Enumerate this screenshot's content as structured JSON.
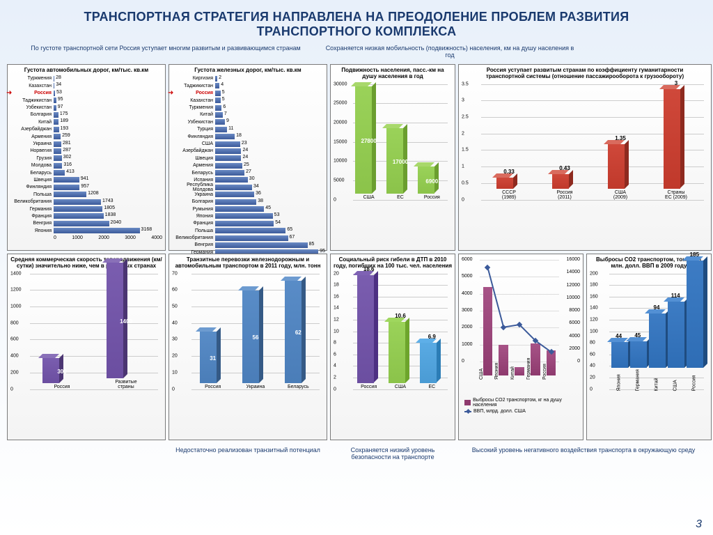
{
  "title": "ТРАНСПОРТНАЯ СТРАТЕГИЯ НАПРАВЛЕНА НА ПРЕОДОЛЕНИЕ ПРОБЛЕМ РАЗВИТИЯ ТРАНСПОРТНОГО КОМПЛЕКСА",
  "subtitle_left": "По густоте транспортной сети Россия уступает многим развитым и развивающимся странам",
  "subtitle_right": "Сохраняется низкая мобильность (подвижность) населения, км на душу населения в год",
  "page_number": "3",
  "panel1": {
    "title": "Густота автомобильных дорог, км/тыс. кв.км",
    "xmax": 4000,
    "xticks": [
      "0",
      "1000",
      "2000",
      "3000",
      "4000"
    ],
    "bar_color": "#3b5a9a",
    "bar_color_top": "#6a8ac4",
    "highlight_color": "#c00000",
    "data": [
      {
        "label": "Туркмения",
        "value": 28
      },
      {
        "label": "Казахстан",
        "value": 34
      },
      {
        "label": "Россия",
        "value": 53,
        "hl": true
      },
      {
        "label": "Таджикистан",
        "value": 95
      },
      {
        "label": "Узбекистан",
        "value": 97
      },
      {
        "label": "Болгария",
        "value": 175
      },
      {
        "label": "Китай",
        "value": 189
      },
      {
        "label": "Азербайджан",
        "value": 193
      },
      {
        "label": "Армения",
        "value": 259
      },
      {
        "label": "Украина",
        "value": 281
      },
      {
        "label": "Норвегия",
        "value": 287
      },
      {
        "label": "Грузия",
        "value": 302
      },
      {
        "label": "Молдова",
        "value": 316
      },
      {
        "label": "Беларусь",
        "value": 413
      },
      {
        "label": "Швеция",
        "value": 941
      },
      {
        "label": "Финляндия",
        "value": 957
      },
      {
        "label": "Польша",
        "value": 1208
      },
      {
        "label": "Великобритания",
        "value": 1743
      },
      {
        "label": "Германия",
        "value": 1805
      },
      {
        "label": "Франция",
        "value": 1838
      },
      {
        "label": "Венгрия",
        "value": 2040
      },
      {
        "label": "Япония",
        "value": 3168
      }
    ]
  },
  "panel2": {
    "title": "Густота железных дорог, км/тыс. кв.км",
    "xmax": 100,
    "xticks": [
      "0",
      "10",
      "20",
      "30",
      "40",
      "50",
      "60",
      "70",
      "80",
      "90",
      "100"
    ],
    "bar_color": "#3b5a9a",
    "bar_color_top": "#6a8ac4",
    "highlight_color": "#c00000",
    "data": [
      {
        "label": "Киргизия",
        "value": 2
      },
      {
        "label": "Таджикистан",
        "value": 4
      },
      {
        "label": "Россия",
        "value": 5,
        "hl": true
      },
      {
        "label": "Казахстан",
        "value": 5
      },
      {
        "label": "Туркмения",
        "value": 6
      },
      {
        "label": "Китай",
        "value": 7
      },
      {
        "label": "Узбекистан",
        "value": 9
      },
      {
        "label": "Турция",
        "value": 11
      },
      {
        "label": "Финляндия",
        "value": 18
      },
      {
        "label": "США",
        "value": 23
      },
      {
        "label": "Азербайджан",
        "value": 24
      },
      {
        "label": "Швеция",
        "value": 24
      },
      {
        "label": "Армения",
        "value": 25
      },
      {
        "label": "Беларусь",
        "value": 27
      },
      {
        "label": "Испания",
        "value": 30
      },
      {
        "label": "Республика Молдова",
        "value": 34
      },
      {
        "label": "Украина",
        "value": 36
      },
      {
        "label": "Болгария",
        "value": 38
      },
      {
        "label": "Румыния",
        "value": 45
      },
      {
        "label": "Япония",
        "value": 53
      },
      {
        "label": "Франция",
        "value": 54
      },
      {
        "label": "Польша",
        "value": 65
      },
      {
        "label": "Великобритания",
        "value": 67
      },
      {
        "label": "Венгрия",
        "value": 85
      },
      {
        "label": "Германия",
        "value": 95
      }
    ]
  },
  "panel3": {
    "title": "Подвижность населения, пасс.-км на душу населения в год",
    "ymax": 30000,
    "yticks": [
      "0",
      "5000",
      "10000",
      "15000",
      "20000",
      "25000",
      "30000"
    ],
    "front": "#8bc34a",
    "side": "#6b9e2f",
    "top": "#a8d86b",
    "data": [
      {
        "label": "США",
        "value": 27800
      },
      {
        "label": "ЕС",
        "value": 17000
      },
      {
        "label": "Россия",
        "value": 6900
      }
    ]
  },
  "panel4": {
    "title": "Россия уступает развитым странам  по коэффициенту гуманитарности транспортной системы  (отношение пассажирооборота к грузообороту)",
    "ymax": 3.5,
    "yticks": [
      "0",
      "0.5",
      "1",
      "1.5",
      "2",
      "2.5",
      "3",
      "3.5"
    ],
    "front": "#c0392b",
    "side": "#8e2a1f",
    "top": "#d96b5e",
    "data": [
      {
        "label": "СССР (1989)",
        "value": 0.33
      },
      {
        "label": "Россия (2011)",
        "value": 0.43
      },
      {
        "label": "США (2009)",
        "value": 1.35
      },
      {
        "label": "Страны ЕС (2009)",
        "value": 3
      }
    ]
  },
  "panel5": {
    "title": "Средняя коммерческая скорость товародвижения (км/сутки) значительно ниже, чем в развитых странах",
    "ymax": 1400,
    "yticks": [
      "0",
      "200",
      "400",
      "600",
      "800",
      "1000",
      "1200",
      "1400"
    ],
    "front": "#6b4ea0",
    "side": "#4b3572",
    "top": "#8970b8",
    "data": [
      {
        "label": "Россия",
        "value": 300
      },
      {
        "label": "Развитые страны",
        "value": 1400
      }
    ]
  },
  "panel6": {
    "title": "Транзитные перевозки железнодорожным и автомобильным транспортом в 2011 году, млн. тонн",
    "ymax": 70,
    "yticks": [
      "0",
      "10",
      "20",
      "30",
      "40",
      "50",
      "60",
      "70"
    ],
    "front": "#4a7db8",
    "side": "#355a86",
    "top": "#6d9bd0",
    "data": [
      {
        "label": "Россия",
        "value": 31
      },
      {
        "label": "Украина",
        "value": 56
      },
      {
        "label": "Беларусь",
        "value": 62
      }
    ],
    "caption": "Недостаточно реализован транзитный потенциал"
  },
  "panel7": {
    "title": "Социальный риск гибели в ДТП в 2010 году, погибших на 100 тыс. чел. населения",
    "ymax": 20,
    "yticks": [
      "0",
      "2",
      "4",
      "6",
      "8",
      "10",
      "12",
      "14",
      "16",
      "18",
      "20"
    ],
    "colors": [
      "#6b4ea0",
      "#8bc34a",
      "#4a9bd4"
    ],
    "data": [
      {
        "label": "Россия",
        "value": 18.6
      },
      {
        "label": "США",
        "value": 10.6
      },
      {
        "label": "ЕС",
        "value": 6.9
      }
    ],
    "caption": "Сохраняется низкий уровень безопасности на транспорте"
  },
  "panel8": {
    "title": "",
    "y1max": 6000,
    "y1ticks": [
      "0",
      "1000",
      "2000",
      "3000",
      "4000",
      "5000",
      "6000"
    ],
    "y2max": 16000,
    "y2ticks": [
      "0",
      "2000",
      "4000",
      "6000",
      "8000",
      "10000",
      "12000",
      "14000",
      "16000"
    ],
    "bar_color": "#8e3a6e",
    "line_color": "#3b5a9a",
    "legend": [
      "Выбросы CO2 транспортом, кг на душу населения",
      "ВВП, млрд. долл. США"
    ],
    "data": [
      {
        "label": "США",
        "bar": 5200,
        "line": 14800
      },
      {
        "label": "Япония",
        "bar": 1800,
        "line": 5400
      },
      {
        "label": "Китай",
        "bar": 500,
        "line": 5800
      },
      {
        "label": "Германия",
        "bar": 1900,
        "line": 3300
      },
      {
        "label": "Россия",
        "bar": 1500,
        "line": 1500
      }
    ],
    "caption": "Высокий уровень негативного воздействия транспорта в окружающую среду"
  },
  "panel9": {
    "title": "Выбросы CO2 транспортом, тонн на 1 млн. долл. ВВП в 2009 году",
    "ymax": 200,
    "yticks": [
      "0",
      "20",
      "40",
      "60",
      "80",
      "100",
      "120",
      "140",
      "160",
      "180",
      "200"
    ],
    "front": "#2e6db5",
    "side": "#1f4c80",
    "top": "#5390d4",
    "data": [
      {
        "label": "Япония",
        "value": 44
      },
      {
        "label": "Германия",
        "value": 45
      },
      {
        "label": "Китай",
        "value": 94
      },
      {
        "label": "США",
        "value": 114
      },
      {
        "label": "Россия",
        "value": 185
      }
    ]
  }
}
